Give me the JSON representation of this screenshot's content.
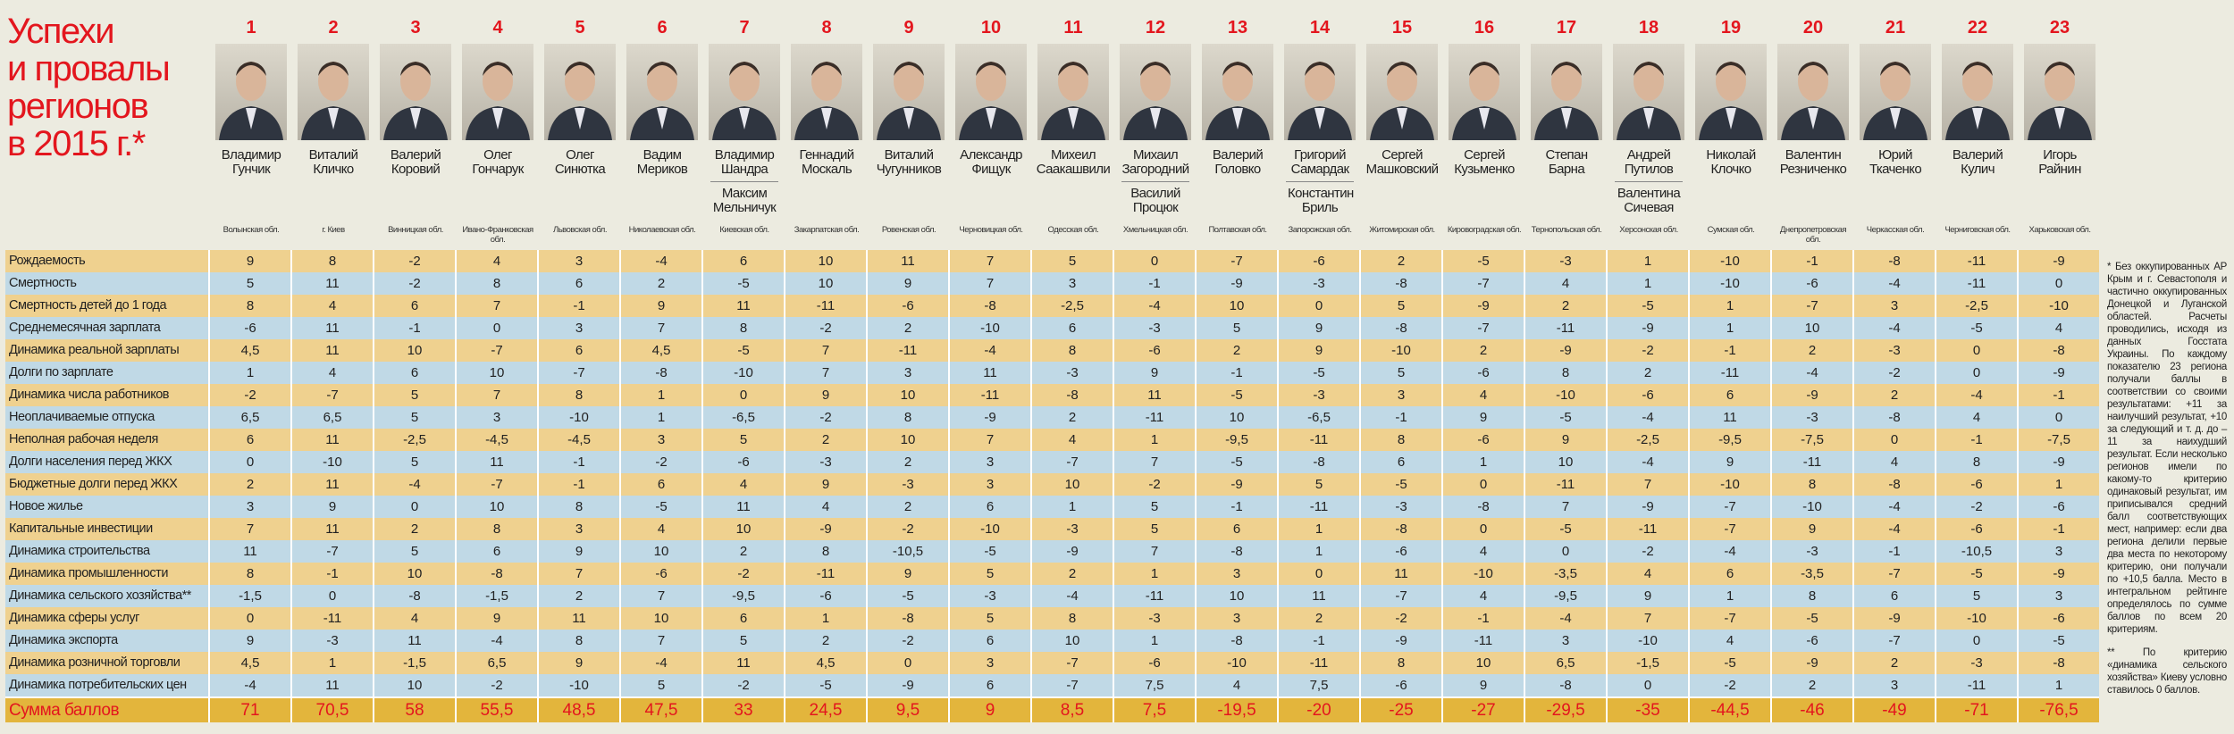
{
  "title": [
    "Успехи",
    "и провалы",
    "регионов",
    "в 2015 г.*"
  ],
  "row_labels": [
    "Рождаемость",
    "Смертность",
    "Смертность детей до 1 года",
    "Среднемесячная зарплата",
    "Динамика реальной зарплаты",
    "Долги по зарплате",
    "Динамика числа работников",
    "Неоплачиваемые отпуска",
    "Неполная рабочая неделя",
    "Долги населения перед ЖКХ",
    "Бюджетные долги перед ЖКХ",
    "Новое жилье",
    "Капитальные инвестиции",
    "Динамика строительства",
    "Динамика промышленности",
    "Динамика сельского хозяйства**",
    "Динамика сферы услуг",
    "Динамика экспорта",
    "Динамика розничной торговли",
    "Динамика потребительских цен"
  ],
  "sum_label": "Сумма баллов",
  "columns": [
    {
      "rank": "1",
      "names": [
        "Владимир Гунчик"
      ],
      "region": "Волынская обл.",
      "scores": [
        "9",
        "5",
        "8",
        "-6",
        "4,5",
        "1",
        "-2",
        "6,5",
        "6",
        "0",
        "2",
        "3",
        "7",
        "11",
        "8",
        "-1,5",
        "0",
        "9",
        "4,5",
        "-4"
      ],
      "sum": "71"
    },
    {
      "rank": "2",
      "names": [
        "Виталий Кличко"
      ],
      "region": "г. Киев",
      "scores": [
        "8",
        "11",
        "4",
        "11",
        "11",
        "4",
        "-7",
        "6,5",
        "11",
        "-10",
        "11",
        "9",
        "11",
        "-7",
        "-1",
        "0",
        "-11",
        "-3",
        "1",
        "11"
      ],
      "sum": "70,5"
    },
    {
      "rank": "3",
      "names": [
        "Валерий Коровий"
      ],
      "region": "Винницкая обл.",
      "scores": [
        "-2",
        "-2",
        "6",
        "-1",
        "10",
        "6",
        "5",
        "5",
        "-2,5",
        "5",
        "-4",
        "0",
        "2",
        "5",
        "10",
        "-8",
        "4",
        "11",
        "-1,5",
        "10"
      ],
      "sum": "58"
    },
    {
      "rank": "4",
      "names": [
        "Олег Гончарук"
      ],
      "region": "Ивано-Франковская обл.",
      "scores": [
        "4",
        "8",
        "7",
        "0",
        "-7",
        "10",
        "7",
        "3",
        "-4,5",
        "11",
        "-7",
        "10",
        "8",
        "6",
        "-8",
        "-1,5",
        "9",
        "-4",
        "6,5",
        "-2"
      ],
      "sum": "55,5"
    },
    {
      "rank": "5",
      "names": [
        "Олег Синютка"
      ],
      "region": "Львовская обл.",
      "scores": [
        "3",
        "6",
        "-1",
        "3",
        "6",
        "-7",
        "8",
        "-10",
        "-4,5",
        "-1",
        "-1",
        "8",
        "3",
        "9",
        "7",
        "2",
        "11",
        "8",
        "9",
        "-10"
      ],
      "sum": "48,5"
    },
    {
      "rank": "6",
      "names": [
        "Вадим Мериков"
      ],
      "region": "Николаевская обл.",
      "scores": [
        "-4",
        "2",
        "9",
        "7",
        "4,5",
        "-8",
        "1",
        "1",
        "3",
        "-2",
        "6",
        "-5",
        "4",
        "10",
        "-6",
        "7",
        "10",
        "7",
        "-4",
        "5"
      ],
      "sum": "47,5"
    },
    {
      "rank": "7",
      "names": [
        "Владимир Шандра",
        "Максим Мельничук"
      ],
      "region": "Киевская обл.",
      "scores": [
        "6",
        "-5",
        "11",
        "8",
        "-5",
        "-10",
        "0",
        "-6,5",
        "5",
        "-6",
        "4",
        "11",
        "10",
        "2",
        "-2",
        "-9,5",
        "6",
        "5",
        "11",
        "-2"
      ],
      "sum": "33"
    },
    {
      "rank": "8",
      "names": [
        "Геннадий Москаль"
      ],
      "region": "Закарпатская обл.",
      "scores": [
        "10",
        "10",
        "-11",
        "-2",
        "7",
        "7",
        "9",
        "-2",
        "2",
        "-3",
        "9",
        "4",
        "-9",
        "8",
        "-11",
        "-6",
        "1",
        "2",
        "4,5",
        "-5"
      ],
      "sum": "24,5"
    },
    {
      "rank": "9",
      "names": [
        "Виталий Чугунников"
      ],
      "region": "Ровенская обл.",
      "scores": [
        "11",
        "9",
        "-6",
        "2",
        "-11",
        "3",
        "10",
        "8",
        "10",
        "2",
        "-3",
        "2",
        "-2",
        "-10,5",
        "9",
        "-5",
        "-8",
        "-2",
        "0",
        "-9"
      ],
      "sum": "9,5"
    },
    {
      "rank": "10",
      "names": [
        "Александр Фищук"
      ],
      "region": "Черновицкая обл.",
      "scores": [
        "7",
        "7",
        "-8",
        "-10",
        "-4",
        "11",
        "-11",
        "-9",
        "7",
        "3",
        "3",
        "6",
        "-10",
        "-5",
        "5",
        "-3",
        "5",
        "6",
        "3",
        "6"
      ],
      "sum": "9"
    },
    {
      "rank": "11",
      "names": [
        "Михеил Саакашвили"
      ],
      "region": "Одесская обл.",
      "scores": [
        "5",
        "3",
        "-2,5",
        "6",
        "8",
        "-3",
        "-8",
        "2",
        "4",
        "-7",
        "10",
        "1",
        "-3",
        "-9",
        "2",
        "-4",
        "8",
        "10",
        "-7",
        "-7"
      ],
      "sum": "8,5"
    },
    {
      "rank": "12",
      "names": [
        "Михаил Загородний",
        "Василий Процюк"
      ],
      "region": "Хмельницкая обл.",
      "scores": [
        "0",
        "-1",
        "-4",
        "-3",
        "-6",
        "9",
        "11",
        "-11",
        "1",
        "7",
        "-2",
        "5",
        "5",
        "7",
        "1",
        "-11",
        "-3",
        "1",
        "-6",
        "7,5"
      ],
      "sum": "7,5"
    },
    {
      "rank": "13",
      "names": [
        "Валерий Головко"
      ],
      "region": "Полтавская обл.",
      "scores": [
        "-7",
        "-9",
        "10",
        "5",
        "2",
        "-1",
        "-5",
        "10",
        "-9,5",
        "-5",
        "-9",
        "-1",
        "6",
        "-8",
        "3",
        "10",
        "3",
        "-8",
        "-10",
        "4"
      ],
      "sum": "-19,5"
    },
    {
      "rank": "14",
      "names": [
        "Григорий Самардак",
        "Константин Бриль"
      ],
      "region": "Запорожская обл.",
      "scores": [
        "-6",
        "-3",
        "0",
        "9",
        "9",
        "-5",
        "-3",
        "-6,5",
        "-11",
        "-8",
        "5",
        "-11",
        "1",
        "1",
        "0",
        "11",
        "2",
        "-1",
        "-11",
        "7,5"
      ],
      "sum": "-20"
    },
    {
      "rank": "15",
      "names": [
        "Сергей Машковский"
      ],
      "region": "Житомирская обл.",
      "scores": [
        "2",
        "-8",
        "5",
        "-8",
        "-10",
        "5",
        "3",
        "-1",
        "8",
        "6",
        "-5",
        "-3",
        "-8",
        "-6",
        "11",
        "-7",
        "-2",
        "-9",
        "8",
        "-6"
      ],
      "sum": "-25"
    },
    {
      "rank": "16",
      "names": [
        "Сергей Кузьменко"
      ],
      "region": "Кировоградская обл.",
      "scores": [
        "-5",
        "-7",
        "-9",
        "-7",
        "2",
        "-6",
        "4",
        "9",
        "-6",
        "1",
        "0",
        "-8",
        "0",
        "4",
        "-10",
        "4",
        "-1",
        "-11",
        "10",
        "9"
      ],
      "sum": "-27"
    },
    {
      "rank": "17",
      "names": [
        "Степан Барна"
      ],
      "region": "Тернопольская обл.",
      "scores": [
        "-3",
        "4",
        "2",
        "-11",
        "-9",
        "8",
        "-10",
        "-5",
        "9",
        "10",
        "-11",
        "7",
        "-5",
        "0",
        "-3,5",
        "-9,5",
        "-4",
        "3",
        "6,5",
        "-8"
      ],
      "sum": "-29,5"
    },
    {
      "rank": "18",
      "names": [
        "Андрей Путилов",
        "Валентина Сичевая"
      ],
      "region": "Херсонская обл.",
      "scores": [
        "1",
        "1",
        "-5",
        "-9",
        "-2",
        "2",
        "-6",
        "-4",
        "-2,5",
        "-4",
        "7",
        "-9",
        "-11",
        "-2",
        "4",
        "9",
        "7",
        "-10",
        "-1,5",
        "0"
      ],
      "sum": "-35"
    },
    {
      "rank": "19",
      "names": [
        "Николай Клочко"
      ],
      "region": "Сумская обл.",
      "scores": [
        "-10",
        "-10",
        "1",
        "1",
        "-1",
        "-11",
        "6",
        "11",
        "-9,5",
        "9",
        "-10",
        "-7",
        "-7",
        "-4",
        "6",
        "1",
        "-7",
        "4",
        "-5",
        "-2"
      ],
      "sum": "-44,5"
    },
    {
      "rank": "20",
      "names": [
        "Валентин Резниченко"
      ],
      "region": "Днепропетровская обл.",
      "scores": [
        "-1",
        "-6",
        "-7",
        "10",
        "2",
        "-4",
        "-9",
        "-3",
        "-7,5",
        "-11",
        "8",
        "-10",
        "9",
        "-3",
        "-3,5",
        "8",
        "-5",
        "-6",
        "-9",
        "2"
      ],
      "sum": "-46"
    },
    {
      "rank": "21",
      "names": [
        "Юрий Ткаченко"
      ],
      "region": "Черкасская обл.",
      "scores": [
        "-8",
        "-4",
        "3",
        "-4",
        "-3",
        "-2",
        "2",
        "-8",
        "0",
        "4",
        "-8",
        "-4",
        "-4",
        "-1",
        "-7",
        "6",
        "-9",
        "-7",
        "2",
        "3"
      ],
      "sum": "-49"
    },
    {
      "rank": "22",
      "names": [
        "Валерий Кулич"
      ],
      "region": "Черниговская обл.",
      "scores": [
        "-11",
        "-11",
        "-2,5",
        "-5",
        "0",
        "0",
        "-4",
        "4",
        "-1",
        "8",
        "-6",
        "-2",
        "-6",
        "-10,5",
        "-5",
        "5",
        "-10",
        "0",
        "-3",
        "-11"
      ],
      "sum": "-71"
    },
    {
      "rank": "23",
      "names": [
        "Игорь Райнин"
      ],
      "region": "Харьковская обл.",
      "scores": [
        "-9",
        "0",
        "-10",
        "4",
        "-8",
        "-9",
        "-1",
        "0",
        "-7,5",
        "-9",
        "1",
        "-6",
        "-1",
        "3",
        "-9",
        "3",
        "-6",
        "-5",
        "-8",
        "1"
      ],
      "sum": "-76,5"
    }
  ],
  "footnotes": [
    "* Без оккупированных АР Крым и г. Севастополя и частично оккупированных Донецкой и Луганской областей. Расчеты проводились, исходя из данных Госстата Украины. По каждому показателю 23 региона получали баллы в соответствии со своими результатами: +11 за наилучший результат, +10 за следующий и т. д. до –11 за наихудший результат. Если несколько регионов имели по какому-то критерию одинаковый результат, им приписывался средний балл соответствующих мест, например: если два региона делили первые два места по некоторому критерию, они получали по +10,5 балла. Место в интегральном рейтинге определялось по сумме баллов по всем 20 критериям.",
    "** По критерию «динамика сельского хозяйства» Киеву условно ставилось 0 баллов."
  ],
  "colors": {
    "accent_red": "#e3161e",
    "row_orange": "#efd18f",
    "row_blue": "#c0d9e6",
    "sum_row": "#e3b53c",
    "background": "#ecebe0"
  }
}
